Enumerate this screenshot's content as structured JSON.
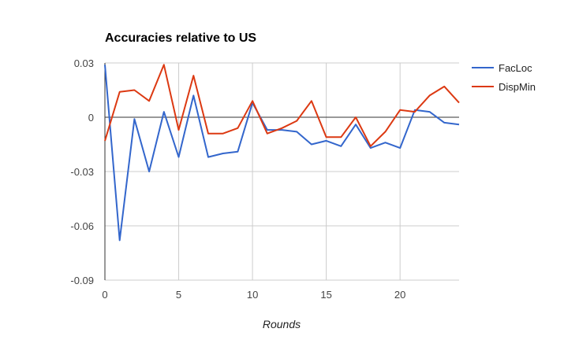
{
  "chart_data": {
    "type": "line",
    "title": "Accuracies relative to US",
    "xlabel": "Rounds",
    "ylabel": "",
    "xlim": [
      0,
      24
    ],
    "ylim": [
      -0.09,
      0.03
    ],
    "x_ticks": [
      0,
      5,
      10,
      15,
      20
    ],
    "x_tick_labels": [
      "0",
      "5",
      "10",
      "15",
      "20"
    ],
    "y_ticks": [
      0.03,
      0,
      -0.03,
      -0.06,
      -0.09
    ],
    "y_tick_labels": [
      "0.03",
      "0",
      "-0.03",
      "-0.06",
      "-0.09"
    ],
    "grid": true,
    "legend_position": "right",
    "x": [
      0,
      1,
      2,
      3,
      4,
      5,
      6,
      7,
      8,
      9,
      10,
      11,
      12,
      13,
      14,
      15,
      16,
      17,
      18,
      19,
      20,
      21,
      22,
      23,
      24
    ],
    "series": [
      {
        "name": "FacLoc",
        "color": "#3366cc",
        "values": [
          0.029,
          -0.068,
          -0.001,
          -0.03,
          0.003,
          -0.022,
          0.012,
          -0.022,
          -0.02,
          -0.019,
          0.008,
          -0.007,
          -0.007,
          -0.008,
          -0.015,
          -0.013,
          -0.016,
          -0.004,
          -0.017,
          -0.014,
          -0.017,
          0.004,
          0.003,
          -0.003,
          -0.004
        ]
      },
      {
        "name": "DispMin",
        "color": "#dc3912",
        "values": [
          -0.013,
          0.014,
          0.015,
          0.009,
          0.029,
          -0.007,
          0.023,
          -0.009,
          -0.009,
          -0.006,
          0.009,
          -0.009,
          -0.006,
          -0.002,
          0.009,
          -0.011,
          -0.011,
          0.0,
          -0.016,
          -0.008,
          0.004,
          0.003,
          0.012,
          0.017,
          0.008
        ]
      }
    ]
  }
}
